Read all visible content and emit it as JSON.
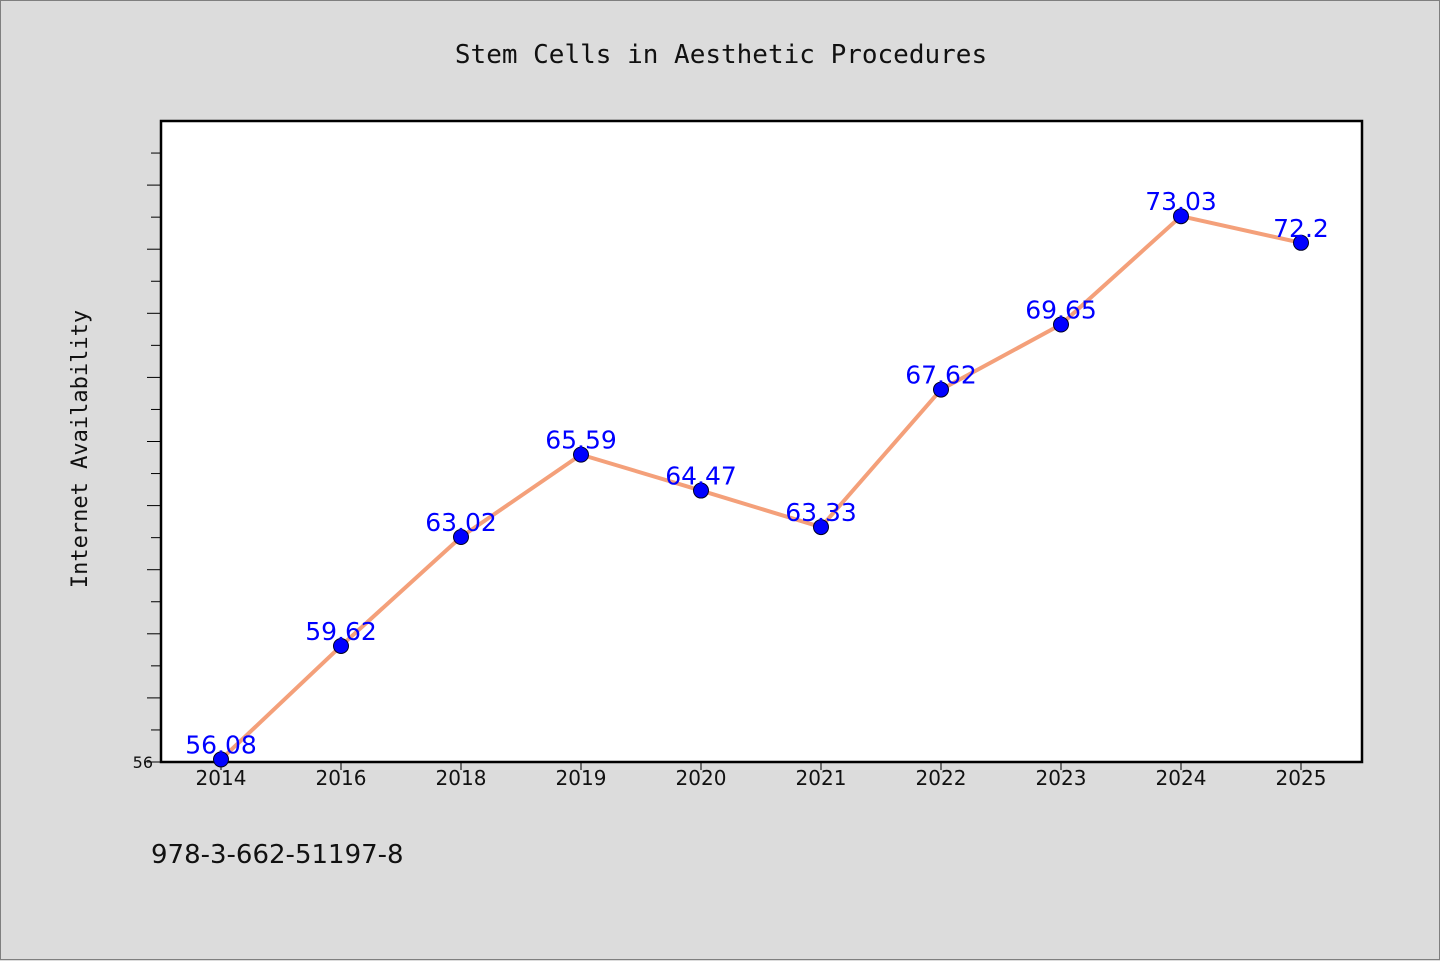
{
  "chart_data": {
    "type": "line",
    "title": "Stem Cells in Aesthetic Procedures",
    "ylabel": "Internet Availability",
    "xlabel": "",
    "categories": [
      "2014",
      "2016",
      "2018",
      "2019",
      "2020",
      "2021",
      "2022",
      "2023",
      "2024",
      "2025"
    ],
    "series": [
      {
        "values": [
          56.08,
          59.62,
          63.02,
          65.59,
          64.47,
          63.33,
          67.62,
          69.65,
          73.03,
          72.2
        ],
        "data_labels": [
          "56.08",
          "59.62",
          "63.02",
          "65.59",
          "64.47",
          "63.33",
          "67.62",
          "69.65",
          "73.03",
          "72.2"
        ],
        "line_color": "#f4a07a",
        "marker_color": "#0000ff"
      }
    ],
    "ylim": [
      56,
      76
    ],
    "y_tick_labels": [
      "56"
    ],
    "grid": false,
    "legend": "none"
  },
  "footer_text": "978-3-662-51197-8"
}
